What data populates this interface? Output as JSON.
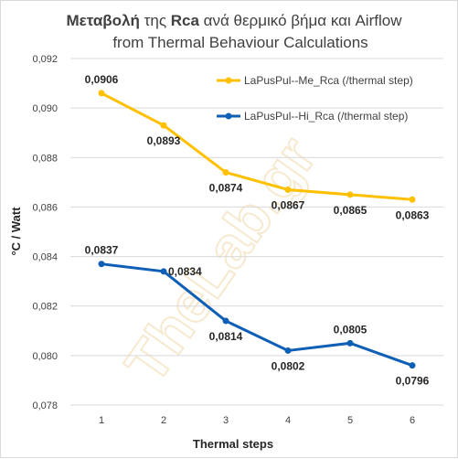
{
  "title": {
    "line1_prefix": "Μεταβολή",
    "line1_mid": " της ",
    "line1_bold": "Rca",
    "line1_suffix": " ανά θερμικό βήμα και  Airflow",
    "line2": "from Thermal Behaviour Calculations"
  },
  "watermark": "TheLab.gr",
  "colors": {
    "series1": "#FFC000",
    "series2": "#0E5FB5",
    "grid": "#d9d9d9"
  },
  "chart_data": {
    "type": "line",
    "x": [
      1,
      2,
      3,
      4,
      5,
      6
    ],
    "x_tick_labels": [
      "1",
      "2",
      "3",
      "4",
      "5",
      "6"
    ],
    "xlabel": "Thermal steps",
    "ylabel": "°C / Watt",
    "ylim": [
      0.078,
      0.092
    ],
    "y_ticks": [
      0.078,
      0.08,
      0.082,
      0.084,
      0.086,
      0.088,
      0.09,
      0.092
    ],
    "y_tick_labels": [
      "0,078",
      "0,080",
      "0,082",
      "0,084",
      "0,086",
      "0,088",
      "0,090",
      "0,092"
    ],
    "grid": true,
    "legend_position": "top-right",
    "series": [
      {
        "name": "LaPusPul--Me_Rca (/thermal step)",
        "values": [
          0.0906,
          0.0893,
          0.0874,
          0.0867,
          0.0865,
          0.0863
        ],
        "labels": [
          "0,0906",
          "0,0893",
          "0,0874",
          "0,0867",
          "0,0865",
          "0,0863"
        ],
        "label_positions": [
          "above",
          "below",
          "below",
          "below",
          "below",
          "below"
        ]
      },
      {
        "name": "LaPusPul--Hi_Rca (/thermal step)",
        "values": [
          0.0837,
          0.0834,
          0.0814,
          0.0802,
          0.0805,
          0.0796
        ],
        "labels": [
          "0,0837",
          "0,0834",
          "0,0814",
          "0,0802",
          "0,0805",
          "0,0796"
        ],
        "label_positions": [
          "above",
          "right",
          "below",
          "below",
          "above",
          "below"
        ]
      }
    ]
  }
}
